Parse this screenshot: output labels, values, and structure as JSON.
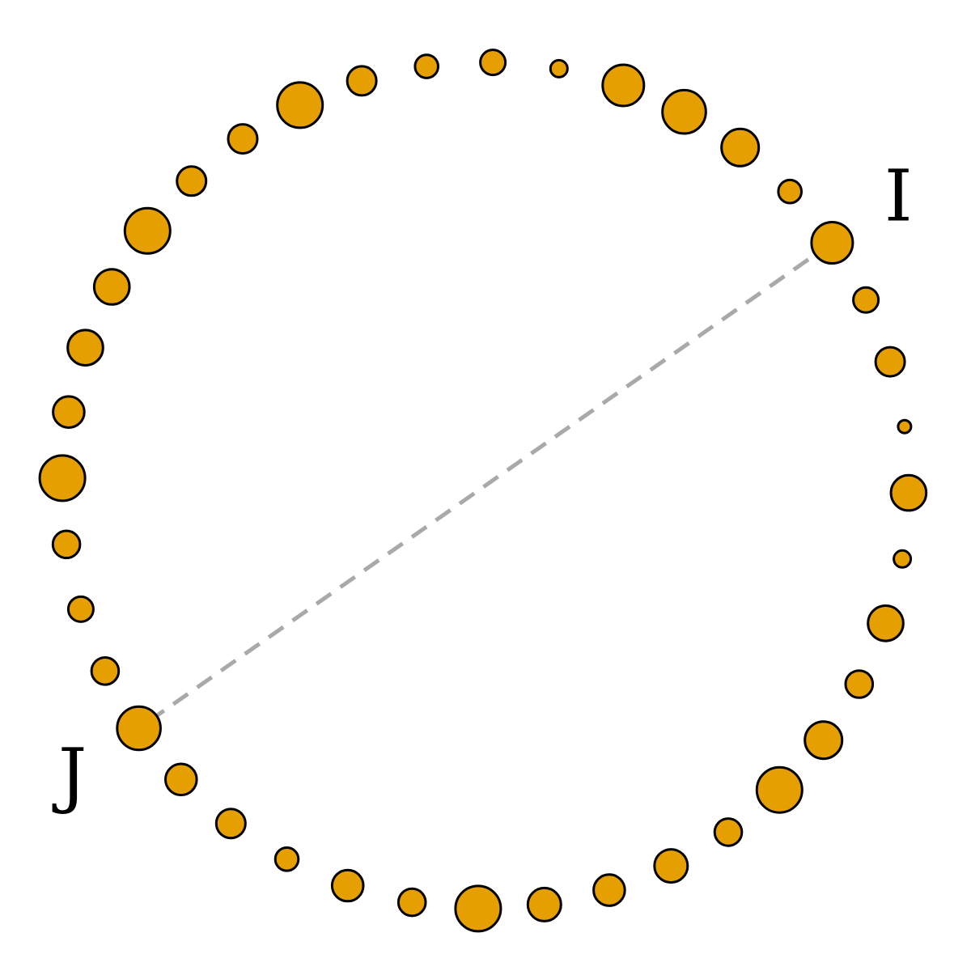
{
  "diagram": {
    "node_color": "#e69f00",
    "chord_color": "#a9a9a9",
    "nodes": [
      {
        "name": "node-01",
        "weight": 0.7
      },
      {
        "name": "node-02",
        "weight": 0.3
      },
      {
        "name": "node-03",
        "weight": 0.4
      },
      {
        "name": "node-04",
        "weight": 0.0
      },
      {
        "name": "node-05",
        "weight": 0.55
      },
      {
        "name": "node-06",
        "weight": 0.1
      },
      {
        "name": "node-07",
        "weight": 0.55
      },
      {
        "name": "node-08",
        "weight": 0.35
      },
      {
        "name": "node-09",
        "weight": 0.6
      },
      {
        "name": "node-10",
        "weight": 0.8
      },
      {
        "name": "node-11",
        "weight": 0.35
      },
      {
        "name": "node-12",
        "weight": 0.5
      },
      {
        "name": "node-13",
        "weight": 0.45
      },
      {
        "name": "node-14",
        "weight": 0.5
      },
      {
        "name": "node-15",
        "weight": 0.8
      },
      {
        "name": "node-16",
        "weight": 0.35
      },
      {
        "name": "node-17",
        "weight": 0.45
      },
      {
        "name": "node-18",
        "weight": 0.25
      },
      {
        "name": "node-19",
        "weight": 0.4
      },
      {
        "name": "node-20",
        "weight": 0.45
      },
      {
        "name": "node-21",
        "weight": 0.75
      },
      {
        "name": "node-22",
        "weight": 0.35
      },
      {
        "name": "node-23",
        "weight": 0.3
      },
      {
        "name": "node-24",
        "weight": 0.35
      },
      {
        "name": "node-25",
        "weight": 0.8
      },
      {
        "name": "node-26",
        "weight": 0.45
      },
      {
        "name": "node-27",
        "weight": 0.55
      },
      {
        "name": "node-28",
        "weight": 0.55
      },
      {
        "name": "node-29",
        "weight": 0.8
      },
      {
        "name": "node-30",
        "weight": 0.4
      },
      {
        "name": "node-31",
        "weight": 0.4
      },
      {
        "name": "node-32",
        "weight": 0.8
      },
      {
        "name": "node-33",
        "weight": 0.4
      },
      {
        "name": "node-34",
        "weight": 0.25
      },
      {
        "name": "node-35",
        "weight": 0.3
      },
      {
        "name": "node-36",
        "weight": 0.1
      },
      {
        "name": "node-37",
        "weight": 0.7
      },
      {
        "name": "node-38",
        "weight": 0.75
      },
      {
        "name": "node-39",
        "weight": 0.6
      },
      {
        "name": "node-40",
        "weight": 0.25
      }
    ],
    "chord": {
      "from_index": 0,
      "to_index": 20
    },
    "labels": [
      {
        "text": "I",
        "node_index": 0
      },
      {
        "text": "J",
        "node_index": 20
      }
    ]
  }
}
